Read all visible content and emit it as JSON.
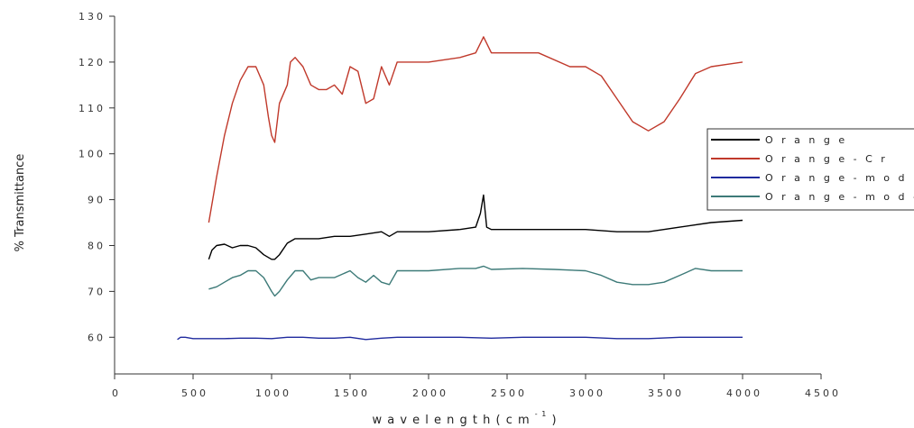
{
  "chart_data": {
    "type": "line",
    "title": "",
    "xlabel": "w a v e l e n g t h  ( c m",
    "xlabel_sup": "- 1",
    "xlabel_close": ")",
    "ylabel": "% Transmittance",
    "xlim": [
      0,
      4500
    ],
    "ylim": [
      52,
      130
    ],
    "xticks": [
      0,
      500,
      1000,
      1500,
      2000,
      2500,
      3000,
      3500,
      4000,
      4500
    ],
    "yticks": [
      60,
      70,
      80,
      90,
      100,
      110,
      120,
      130
    ],
    "xtick_labels": [
      "0",
      "500",
      "1000",
      "1500",
      "2000",
      "2500",
      "3000",
      "3500",
      "4000",
      "4500"
    ],
    "ytick_labels": [
      "60",
      "70",
      "80",
      "90",
      "100",
      "110",
      "120",
      "130"
    ],
    "grid": false,
    "legend_position": "right",
    "series": [
      {
        "name": "O r a n g e",
        "color": "#000000",
        "x": [
          600,
          620,
          650,
          700,
          750,
          800,
          850,
          900,
          950,
          1000,
          1020,
          1050,
          1100,
          1150,
          1200,
          1300,
          1400,
          1500,
          1600,
          1700,
          1750,
          1800,
          2000,
          2200,
          2300,
          2330,
          2350,
          2370,
          2400,
          2500,
          2800,
          3000,
          3200,
          3400,
          3600,
          3800,
          4000
        ],
        "y": [
          77,
          79,
          80,
          80.3,
          79.5,
          80,
          80,
          79.5,
          78,
          77,
          77,
          78,
          80.5,
          81.5,
          81.5,
          81.5,
          82,
          82,
          82.5,
          83,
          82,
          83,
          83,
          83.5,
          84,
          87,
          91,
          84,
          83.5,
          83.5,
          83.5,
          83.5,
          83,
          83,
          84,
          85,
          85.5
        ]
      },
      {
        "name": "O r a n g e - C r",
        "color": "#c0392b",
        "x": [
          600,
          650,
          700,
          750,
          800,
          850,
          900,
          950,
          980,
          1000,
          1020,
          1050,
          1100,
          1120,
          1150,
          1200,
          1250,
          1300,
          1350,
          1400,
          1450,
          1500,
          1550,
          1600,
          1650,
          1700,
          1750,
          1800,
          2000,
          2200,
          2300,
          2350,
          2400,
          2500,
          2700,
          2900,
          3000,
          3100,
          3200,
          3300,
          3400,
          3500,
          3600,
          3700,
          3800,
          3900,
          4000
        ],
        "y": [
          85,
          95,
          104,
          111,
          116,
          119,
          119,
          115,
          108,
          104,
          102.5,
          111,
          115,
          120,
          121,
          119,
          115,
          114,
          114,
          115,
          113,
          119,
          118,
          111,
          112,
          119,
          115,
          120,
          120,
          121,
          122,
          125.5,
          122,
          122,
          122,
          119,
          119,
          117,
          112,
          107,
          105,
          107,
          112,
          117.5,
          119,
          119.5,
          120
        ]
      },
      {
        "name": "O r a n g e - m o d",
        "color": "#1f2a9e",
        "x": [
          400,
          420,
          450,
          500,
          600,
          700,
          800,
          900,
          1000,
          1100,
          1200,
          1300,
          1400,
          1500,
          1600,
          1700,
          1800,
          2000,
          2200,
          2400,
          2600,
          2800,
          3000,
          3200,
          3400,
          3600,
          3800,
          4000
        ],
        "y": [
          59.5,
          60,
          60,
          59.7,
          59.7,
          59.7,
          59.8,
          59.8,
          59.7,
          60,
          60,
          59.8,
          59.8,
          60,
          59.5,
          59.8,
          60,
          60,
          60,
          59.8,
          60,
          60,
          60,
          59.7,
          59.7,
          60,
          60,
          60
        ]
      },
      {
        "name": "O r a n g e - m o d - C r",
        "color": "#3d7a78",
        "x": [
          600,
          650,
          700,
          750,
          800,
          850,
          900,
          950,
          1000,
          1020,
          1050,
          1100,
          1150,
          1200,
          1250,
          1300,
          1400,
          1500,
          1550,
          1600,
          1650,
          1700,
          1750,
          1800,
          2000,
          2200,
          2300,
          2350,
          2400,
          2600,
          2800,
          3000,
          3100,
          3200,
          3300,
          3400,
          3500,
          3600,
          3700,
          3800,
          4000
        ],
        "y": [
          70.5,
          71,
          72,
          73,
          73.5,
          74.5,
          74.5,
          73,
          70,
          69,
          70,
          72.5,
          74.5,
          74.5,
          72.5,
          73,
          73,
          74.5,
          73,
          72,
          73.5,
          72,
          71.5,
          74.5,
          74.5,
          75,
          75,
          75.5,
          74.8,
          75,
          74.8,
          74.5,
          73.5,
          72,
          71.5,
          71.5,
          72,
          73.5,
          75,
          74.5,
          74.5
        ]
      }
    ]
  }
}
